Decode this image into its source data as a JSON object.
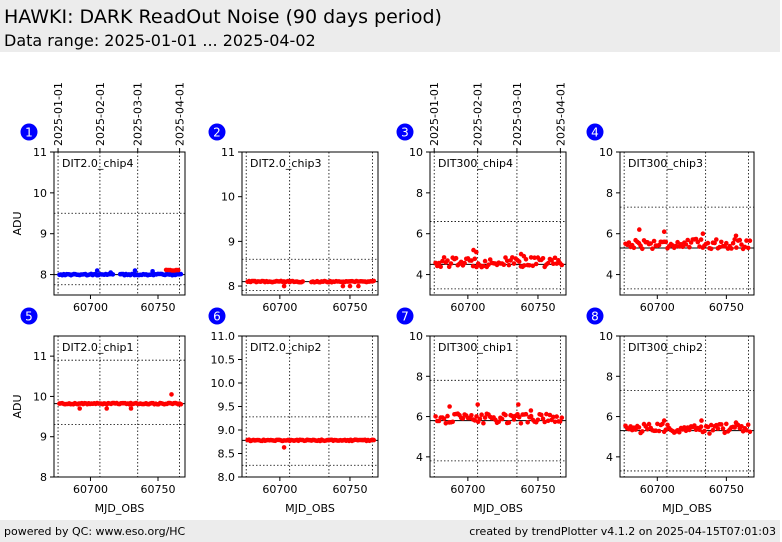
{
  "header": {
    "title": "HAWKI: DARK ReadOut Noise (90 days period)",
    "subtitle": "Data range: 2025-01-01 ... 2025-04-02"
  },
  "footer": {
    "left": "powered by QC: www.eso.org/HC",
    "right": "created by trendPlotter v4.1.2 on 2025-04-15T07:01:03"
  },
  "colors": {
    "good_points": "#ff0000",
    "flagged_points": "#0000ff",
    "badge": "#0000ff",
    "median_line": "#000000",
    "header_bg": "#ececec"
  },
  "chart_data": [
    {
      "type": "scatter",
      "panel_number": "1",
      "label": "DIT2.0_chip4",
      "ylabel": "ADU",
      "xlabel": "",
      "xlim": [
        60673,
        60770
      ],
      "ylim": [
        7.5,
        11
      ],
      "yticks": [
        8,
        9,
        10,
        11
      ],
      "xticks": [
        60700,
        60750
      ],
      "date_ticks": [
        "2025-01-01",
        "2025-02-01",
        "2025-03-01",
        "2025-04-01"
      ],
      "median": 8.0,
      "limits": [
        7.75,
        9.5
      ],
      "series": [
        {
          "color": "blue",
          "x_range": [
            60677,
            60767
          ],
          "y_base": 8.0,
          "count": 85,
          "outliers": [
            [
              60705,
              8.1
            ],
            [
              60715,
              8.05
            ],
            [
              60733,
              8.1
            ],
            [
              60746,
              8.08
            ]
          ]
        },
        {
          "color": "red",
          "x_range": [
            60756,
            60765
          ],
          "y_base": 8.1,
          "count": 7,
          "outliers": []
        }
      ]
    },
    {
      "type": "scatter",
      "panel_number": "2",
      "label": "DIT2.0_chip3",
      "ylabel": "",
      "xlabel": "",
      "xlim": [
        60673,
        60770
      ],
      "ylim": [
        7.8,
        11
      ],
      "yticks": [
        8,
        9,
        10,
        11
      ],
      "xticks": [
        60700,
        60750
      ],
      "median": 8.1,
      "limits": [
        7.9,
        8.6
      ],
      "series": [
        {
          "color": "red",
          "x_range": [
            60677,
            60767
          ],
          "y_base": 8.1,
          "count": 88,
          "outliers": [
            [
              60703,
              8.0
            ],
            [
              60745,
              8.0
            ],
            [
              60750,
              8.0
            ],
            [
              60756,
              8.0
            ]
          ]
        }
      ]
    },
    {
      "type": "scatter",
      "panel_number": "3",
      "label": "DIT300_chip4",
      "ylabel": "",
      "xlabel": "",
      "xlim": [
        60673,
        60770
      ],
      "ylim": [
        3.0,
        10
      ],
      "yticks": [
        4,
        6,
        8,
        10
      ],
      "xticks": [
        60700,
        60750
      ],
      "date_ticks": [
        "2025-01-01",
        "2025-02-01",
        "2025-03-01",
        "2025-04-01"
      ],
      "median": 4.5,
      "limits": [
        3.3,
        6.6
      ],
      "series": [
        {
          "color": "red",
          "x_range": [
            60677,
            60767
          ],
          "y_base": 4.6,
          "count": 75,
          "outliers": [
            [
              60704,
              5.2
            ],
            [
              60706,
              5.1
            ],
            [
              60738,
              5.0
            ],
            [
              60740,
              4.9
            ]
          ]
        }
      ]
    },
    {
      "type": "scatter",
      "panel_number": "4",
      "label": "DIT300_chip3",
      "ylabel": "",
      "xlabel": "",
      "xlim": [
        60673,
        60770
      ],
      "ylim": [
        3.0,
        10
      ],
      "yticks": [
        4,
        6,
        8,
        10
      ],
      "xticks": [
        60700,
        60750
      ],
      "median": 5.3,
      "limits": [
        3.3,
        7.3
      ],
      "series": [
        {
          "color": "red",
          "x_range": [
            60677,
            60767
          ],
          "y_base": 5.5,
          "count": 75,
          "outliers": [
            [
              60687,
              6.2
            ],
            [
              60705,
              6.1
            ],
            [
              60733,
              6.0
            ],
            [
              60757,
              5.9
            ]
          ]
        }
      ]
    },
    {
      "type": "scatter",
      "panel_number": "5",
      "label": "DIT2.0_chip1",
      "ylabel": "ADU",
      "xlabel": "MJD_OBS",
      "xlim": [
        60673,
        60770
      ],
      "ylim": [
        8.0,
        11.5
      ],
      "yticks": [
        8,
        9,
        10,
        11
      ],
      "xticks": [
        60700,
        60750
      ],
      "median": 9.82,
      "limits": [
        9.3,
        10.9
      ],
      "series": [
        {
          "color": "red",
          "x_range": [
            60677,
            60767
          ],
          "y_base": 9.82,
          "count": 88,
          "outliers": [
            [
              60760,
              10.05
            ],
            [
              60692,
              9.7
            ],
            [
              60712,
              9.7
            ],
            [
              60730,
              9.7
            ]
          ]
        }
      ]
    },
    {
      "type": "scatter",
      "panel_number": "6",
      "label": "DIT2.0_chip2",
      "ylabel": "",
      "xlabel": "MJD_OBS",
      "xlim": [
        60673,
        60770
      ],
      "ylim": [
        8.0,
        11
      ],
      "yticks": [
        8.0,
        8.5,
        9.0,
        9.5,
        10.0,
        10.5,
        11.0
      ],
      "xticks": [
        60700,
        60750
      ],
      "median": 8.78,
      "limits": [
        8.25,
        9.28
      ],
      "series": [
        {
          "color": "red",
          "x_range": [
            60677,
            60767
          ],
          "y_base": 8.78,
          "count": 88,
          "outliers": [
            [
              60703,
              8.63
            ]
          ]
        }
      ]
    },
    {
      "type": "scatter",
      "panel_number": "7",
      "label": "DIT300_chip1",
      "ylabel": "",
      "xlabel": "MJD_OBS",
      "xlim": [
        60673,
        60770
      ],
      "ylim": [
        3.0,
        10
      ],
      "yticks": [
        4,
        6,
        8,
        10
      ],
      "xticks": [
        60700,
        60750
      ],
      "median": 5.8,
      "limits": [
        3.8,
        7.8
      ],
      "series": [
        {
          "color": "red",
          "x_range": [
            60677,
            60767
          ],
          "y_base": 5.9,
          "count": 75,
          "outliers": [
            [
              60687,
              6.5
            ],
            [
              60707,
              6.6
            ],
            [
              60736,
              6.6
            ],
            [
              60745,
              6.3
            ]
          ]
        }
      ]
    },
    {
      "type": "scatter",
      "panel_number": "8",
      "label": "DIT300_chip2",
      "ylabel": "",
      "xlabel": "MJD_OBS",
      "xlim": [
        60673,
        60770
      ],
      "ylim": [
        3.0,
        10
      ],
      "yticks": [
        4,
        6,
        8,
        10
      ],
      "xticks": [
        60700,
        60750
      ],
      "median": 5.3,
      "limits": [
        3.3,
        7.3
      ],
      "series": [
        {
          "color": "red",
          "x_range": [
            60677,
            60767
          ],
          "y_base": 5.4,
          "count": 75,
          "outliers": [
            [
              60705,
              5.8
            ],
            [
              60732,
              5.8
            ],
            [
              60757,
              5.7
            ]
          ]
        }
      ]
    }
  ]
}
